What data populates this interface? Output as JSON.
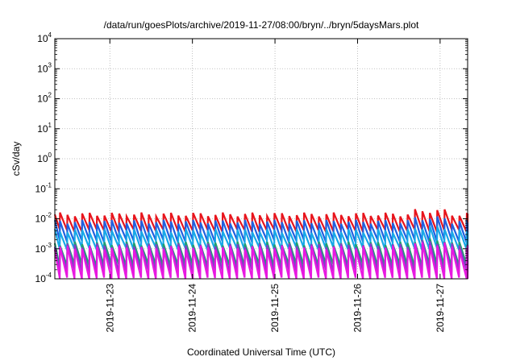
{
  "chart_data": {
    "type": "line",
    "title": "/data/run/goesPlots/archive/2019-11-27/08:00/bryn/../bryn/5daysMars.plot",
    "xlabel": "Coordinated Universal Time (UTC)",
    "ylabel": "cSv/day",
    "yscale": "log",
    "ylim": [
      0.0001,
      10000
    ],
    "y_ticks": [
      {
        "value": 0.0001,
        "base": "10",
        "exp": "-4"
      },
      {
        "value": 0.001,
        "base": "10",
        "exp": "-3"
      },
      {
        "value": 0.01,
        "base": "10",
        "exp": "-2"
      },
      {
        "value": 0.1,
        "base": "10",
        "exp": "-1"
      },
      {
        "value": 1,
        "base": "10",
        "exp": "0"
      },
      {
        "value": 10,
        "base": "10",
        "exp": "1"
      },
      {
        "value": 100,
        "base": "10",
        "exp": "2"
      },
      {
        "value": 1000,
        "base": "10",
        "exp": "3"
      },
      {
        "value": 10000,
        "base": "10",
        "exp": "4"
      }
    ],
    "xlim": [
      "2019-11-22T08:00",
      "2019-11-27T08:00"
    ],
    "x_ticks": [
      {
        "value": "2019-11-23T00:00",
        "label": "2019-11-23"
      },
      {
        "value": "2019-11-24T00:00",
        "label": "2019-11-24"
      },
      {
        "value": "2019-11-25T00:00",
        "label": "2019-11-25"
      },
      {
        "value": "2019-11-26T00:00",
        "label": "2019-11-26"
      },
      {
        "value": "2019-11-27T00:00",
        "label": "2019-11-27"
      }
    ],
    "grid": true,
    "legend": false,
    "sawtooth_period_hours": 2.15,
    "series": [
      {
        "color": "#e8141c",
        "peak": 0.014,
        "trough": 0.004
      },
      {
        "color": "#2060e0",
        "peak": 0.008,
        "trough": 0.0018
      },
      {
        "color": "#18a8e8",
        "peak": 0.004,
        "trough": 0.001
      },
      {
        "color": "#20a070",
        "peak": 0.0015,
        "trough": 0.00028
      },
      {
        "color": "#8040c8",
        "peak": 0.0013,
        "trough": 0.00018
      },
      {
        "color": "#e818e0",
        "peak": 0.0011,
        "trough": 0.0001
      }
    ]
  }
}
